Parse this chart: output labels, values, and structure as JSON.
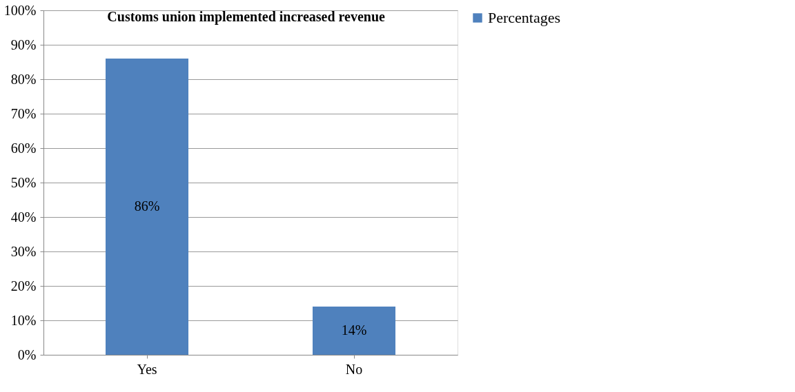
{
  "chart_data": {
    "type": "bar",
    "title": "Customs union implemented increased revenue",
    "categories": [
      "Yes",
      "No"
    ],
    "series": [
      {
        "name": "Percentages",
        "color": "#4f81bd",
        "values": [
          86,
          14
        ]
      }
    ],
    "value_labels": [
      "86%",
      "14%"
    ],
    "ylim": [
      0,
      100
    ],
    "yticks": [
      {
        "value": 0,
        "label": "0%"
      },
      {
        "value": 10,
        "label": "10%"
      },
      {
        "value": 20,
        "label": "20%"
      },
      {
        "value": 30,
        "label": "30%"
      },
      {
        "value": 40,
        "label": "40%"
      },
      {
        "value": 50,
        "label": "50%"
      },
      {
        "value": 60,
        "label": "60%"
      },
      {
        "value": 70,
        "label": "70%"
      },
      {
        "value": 80,
        "label": "80%"
      },
      {
        "value": 90,
        "label": "90%"
      },
      {
        "value": 100,
        "label": "100%"
      }
    ],
    "grid": "y",
    "legend": "right"
  }
}
